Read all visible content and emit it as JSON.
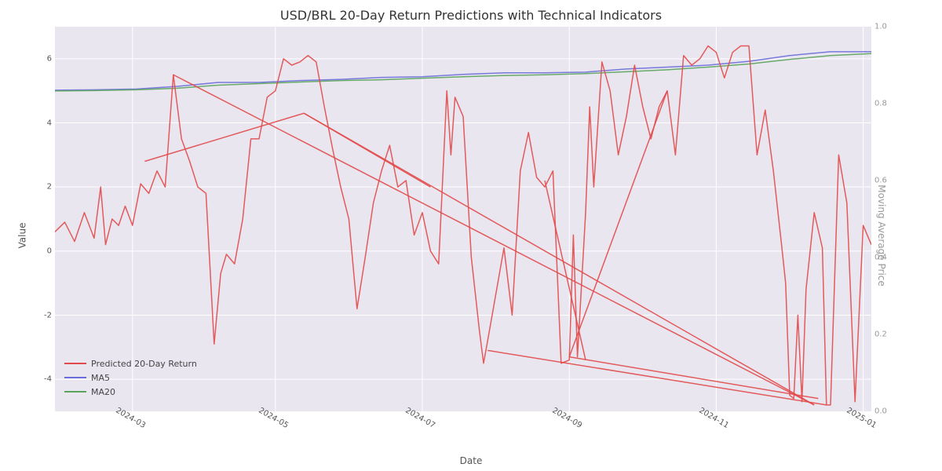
{
  "title": "USD/BRL 20-Day Return Predictions with Technical Indicators",
  "xlabel": "Date",
  "ylabel_left": "Value",
  "ylabel_right": "Moving Average Price",
  "background_color": "#ffffff",
  "plot_background": "#e9e6f0",
  "grid_color": "#ffffff",
  "title_fontsize": 16,
  "axis_label_fontsize": 12,
  "tick_fontsize": 10,
  "legend_fontsize": 11,
  "x_axis": {
    "tick_labels": [
      "2024-03",
      "2024-05",
      "2024-07",
      "2024-09",
      "2024-11",
      "2025-01"
    ],
    "tick_positions": [
      0.095,
      0.27,
      0.45,
      0.63,
      0.81,
      0.99
    ],
    "rotation": 30
  },
  "y_axis_left": {
    "min": -5.0,
    "max": 7.0,
    "ticks": [
      -4,
      -2,
      0,
      2,
      4,
      6
    ],
    "tick_color": "#555555"
  },
  "y_axis_right": {
    "min": 0.0,
    "max": 1.0,
    "ticks": [
      0.0,
      0.2,
      0.4,
      0.6,
      0.8,
      1.0
    ],
    "tick_color": "#999999"
  },
  "legend": {
    "position": "lower left",
    "items": [
      {
        "label": "Predicted 20-Day Return",
        "color": "#e24a4a"
      },
      {
        "label": "MA5",
        "color": "#6a6dd9"
      },
      {
        "label": "MA20",
        "color": "#5aa35a"
      }
    ]
  },
  "series": {
    "predicted": {
      "type": "line",
      "color": "#e24a4a",
      "line_width": 1.5,
      "opacity": 0.9,
      "y_axis": "left",
      "x": [
        0.0,
        0.012,
        0.024,
        0.036,
        0.048,
        0.056,
        0.062,
        0.07,
        0.078,
        0.086,
        0.095,
        0.105,
        0.115,
        0.125,
        0.135,
        0.145,
        0.155,
        0.165,
        0.175,
        0.185,
        0.195,
        0.203,
        0.21,
        0.22,
        0.23,
        0.24,
        0.25,
        0.26,
        0.27,
        0.28,
        0.29,
        0.3,
        0.31,
        0.32,
        0.33,
        0.34,
        0.35,
        0.36,
        0.37,
        0.38,
        0.39,
        0.4,
        0.41,
        0.42,
        0.43,
        0.44,
        0.45,
        0.46,
        0.47,
        0.48,
        0.485,
        0.49,
        0.5,
        0.51,
        0.52,
        0.525,
        0.53,
        0.55,
        0.56,
        0.57,
        0.58,
        0.59,
        0.6,
        0.61,
        0.62,
        0.63,
        0.635,
        0.64,
        0.65,
        0.655,
        0.66,
        0.67,
        0.68,
        0.69,
        0.7,
        0.71,
        0.72,
        0.73,
        0.74,
        0.75,
        0.76,
        0.77,
        0.78,
        0.79,
        0.8,
        0.81,
        0.82,
        0.83,
        0.84,
        0.85,
        0.86,
        0.87,
        0.88,
        0.89,
        0.895,
        0.9,
        0.905,
        0.91,
        0.915,
        0.92,
        0.93,
        0.94,
        0.945,
        0.95,
        0.96,
        0.97,
        0.98,
        0.99,
        1.0
      ],
      "y": [
        0.6,
        0.9,
        0.3,
        1.2,
        0.4,
        2.0,
        0.2,
        1.0,
        0.8,
        1.4,
        0.8,
        2.1,
        1.8,
        2.5,
        2.0,
        5.5,
        3.5,
        2.8,
        2.0,
        1.8,
        -2.9,
        -0.7,
        -0.1,
        -0.4,
        1.0,
        3.5,
        3.5,
        4.8,
        5.0,
        6.0,
        5.8,
        5.9,
        6.1,
        5.9,
        4.5,
        3.2,
        2.0,
        1.0,
        -1.8,
        -0.2,
        1.5,
        2.5,
        3.3,
        2.0,
        2.2,
        0.5,
        1.2,
        0.0,
        -0.4,
        5.0,
        3.0,
        4.8,
        4.2,
        -0.2,
        -2.5,
        -3.5,
        -2.8,
        0.1,
        -2.0,
        2.5,
        3.7,
        2.3,
        2.0,
        2.5,
        -3.5,
        -3.4,
        0.5,
        -3.3,
        1.2,
        4.5,
        2.0,
        5.9,
        5.0,
        3.0,
        4.2,
        5.8,
        4.5,
        3.5,
        4.5,
        5.0,
        3.0,
        6.1,
        5.8,
        6.0,
        6.4,
        6.2,
        5.4,
        6.2,
        6.4,
        6.4,
        3.0,
        4.4,
        2.5,
        0.2,
        -1.0,
        -4.5,
        -4.6,
        -2.0,
        -4.7,
        -1.2,
        1.2,
        0.1,
        -4.8,
        -4.8,
        3.0,
        1.5,
        -4.7,
        0.8,
        0.2
      ],
      "overlay_segments": [
        {
          "x1": 0.145,
          "y1": 5.5,
          "x2": 0.93,
          "y2": -4.8
        },
        {
          "x1": 0.11,
          "y1": 2.8,
          "x2": 0.305,
          "y2": 4.3
        },
        {
          "x1": 0.305,
          "y1": 4.3,
          "x2": 0.93,
          "y2": -4.8
        },
        {
          "x1": 0.305,
          "y1": 4.3,
          "x2": 0.46,
          "y2": 2.0
        },
        {
          "x1": 0.63,
          "y1": -3.3,
          "x2": 0.935,
          "y2": -4.6
        },
        {
          "x1": 0.63,
          "y1": -3.3,
          "x2": 0.75,
          "y2": 5.0
        },
        {
          "x1": 0.6,
          "y1": 2.2,
          "x2": 0.65,
          "y2": -3.4
        },
        {
          "x1": 0.53,
          "y1": -3.1,
          "x2": 0.945,
          "y2": -4.8
        }
      ]
    },
    "ma5": {
      "type": "line",
      "color": "#6a6dd9",
      "line_width": 1.5,
      "opacity": 0.9,
      "y_axis": "right",
      "x": [
        0.0,
        0.05,
        0.1,
        0.15,
        0.2,
        0.25,
        0.3,
        0.35,
        0.4,
        0.45,
        0.5,
        0.55,
        0.6,
        0.65,
        0.7,
        0.75,
        0.8,
        0.85,
        0.9,
        0.95,
        1.0
      ],
      "y": [
        0.835,
        0.836,
        0.838,
        0.845,
        0.855,
        0.855,
        0.86,
        0.863,
        0.868,
        0.87,
        0.876,
        0.88,
        0.88,
        0.882,
        0.89,
        0.895,
        0.9,
        0.91,
        0.925,
        0.935,
        0.935
      ]
    },
    "ma20": {
      "type": "line",
      "color": "#5aa35a",
      "line_width": 1.5,
      "opacity": 0.9,
      "y_axis": "right",
      "x": [
        0.0,
        0.05,
        0.1,
        0.15,
        0.2,
        0.25,
        0.3,
        0.35,
        0.4,
        0.45,
        0.5,
        0.55,
        0.6,
        0.65,
        0.7,
        0.75,
        0.8,
        0.85,
        0.9,
        0.95,
        1.0
      ],
      "y": [
        0.833,
        0.834,
        0.836,
        0.84,
        0.848,
        0.852,
        0.856,
        0.86,
        0.862,
        0.866,
        0.87,
        0.873,
        0.875,
        0.878,
        0.883,
        0.888,
        0.895,
        0.903,
        0.915,
        0.925,
        0.93
      ]
    }
  }
}
